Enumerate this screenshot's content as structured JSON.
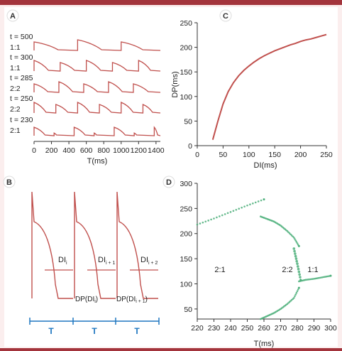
{
  "colors": {
    "frame_bar": "#a3343c",
    "frame_bg": "#fbeeee",
    "trace": "#c0504d",
    "axis": "#333333",
    "period_bar": "#1f77c0",
    "bif": "#4caf7a"
  },
  "panels": {
    "A": {
      "letter": "A",
      "rows": [
        {
          "t": "t = 500",
          "ratio": "1:1"
        },
        {
          "t": "t = 300",
          "ratio": "1:1"
        },
        {
          "t": "t = 285",
          "ratio": "2:2"
        },
        {
          "t": "t = 250",
          "ratio": "2:2"
        },
        {
          "t": "t = 230",
          "ratio": "2:1"
        }
      ],
      "xlabel": "T(ms)"
    },
    "B": {
      "letter": "B",
      "di_labels": [
        "DI",
        "DI",
        "DI"
      ],
      "di_subs": [
        "i",
        "i + 1",
        "i + 2"
      ],
      "dp_labels": [
        "DP(DI",
        "DP(DI"
      ],
      "dp_subs": [
        "i",
        "i + 1"
      ],
      "dp_closers": [
        ")",
        ")"
      ],
      "period_label": "T"
    },
    "C": {
      "letter": "C",
      "xlabel": "DI(ms)",
      "ylabel": "DP(ms)"
    },
    "D": {
      "letter": "D",
      "xlabel": "T(ms)",
      "region_labels": [
        "2:1",
        "2:2",
        "1:1"
      ]
    }
  },
  "chart_data": [
    {
      "panel": "A",
      "type": "line",
      "title": "",
      "xlabel": "T(ms)",
      "ylabel": "",
      "xlim": [
        0,
        1450
      ],
      "x_ticks": [
        0,
        200,
        400,
        600,
        800,
        1000,
        1200,
        1400
      ],
      "series_rows": [
        {
          "label": "t = 500",
          "ratio": "1:1",
          "stim_times": [
            0,
            500,
            1000
          ]
        },
        {
          "label": "t = 300",
          "ratio": "1:1",
          "stim_times": [
            0,
            300,
            600,
            900,
            1200
          ]
        },
        {
          "label": "t = 285",
          "ratio": "2:2",
          "stim_times": [
            0,
            285,
            570,
            855,
            1140
          ]
        },
        {
          "label": "t = 250",
          "ratio": "2:2",
          "stim_times": [
            0,
            250,
            500,
            750,
            1000,
            1250
          ]
        },
        {
          "label": "t = 230",
          "ratio": "2:1",
          "stim_times": [
            0,
            230,
            460,
            690,
            920,
            1150,
            1380
          ]
        }
      ]
    },
    {
      "panel": "B",
      "type": "line",
      "title": "",
      "xlabel": "",
      "ylabel": "",
      "description_values": {
        "beats": 3,
        "period_label": "T"
      }
    },
    {
      "panel": "C",
      "type": "line",
      "title": "",
      "xlabel": "DI(ms)",
      "ylabel": "DP(ms)",
      "xlim": [
        0,
        250
      ],
      "ylim": [
        0,
        250
      ],
      "x_ticks": [
        0,
        50,
        100,
        150,
        200,
        250
      ],
      "y_ticks": [
        0,
        50,
        100,
        150,
        200,
        250
      ],
      "x": [
        30,
        40,
        50,
        60,
        70,
        80,
        90,
        100,
        110,
        120,
        130,
        140,
        150,
        160,
        170,
        180,
        190,
        200,
        210,
        220,
        230,
        240,
        250
      ],
      "y": [
        12,
        50,
        85,
        110,
        128,
        142,
        153,
        162,
        170,
        177,
        183,
        188,
        193,
        197,
        201,
        205,
        208,
        212,
        215,
        217,
        220,
        223,
        226
      ]
    },
    {
      "panel": "D",
      "type": "scatter",
      "title": "",
      "xlabel": "T(ms)",
      "ylabel": "",
      "xlim": [
        220,
        300
      ],
      "ylim": [
        30,
        300
      ],
      "x_ticks": [
        220,
        230,
        240,
        250,
        260,
        270,
        280,
        290,
        300
      ],
      "y_ticks": [
        50,
        100,
        150,
        200,
        250,
        300
      ],
      "regions": [
        "2:1",
        "2:2",
        "1:1"
      ],
      "series": [
        {
          "x": [
            220,
            230,
            240,
            250,
            260
          ],
          "y": [
            218,
            230,
            243,
            256,
            268
          ]
        },
        {
          "x": [
            258,
            262,
            266,
            270,
            274,
            278,
            281
          ],
          "y": [
            234,
            229,
            224,
            216,
            205,
            192,
            175
          ]
        },
        {
          "x": [
            278,
            280,
            282
          ],
          "y": [
            170,
            140,
            108
          ]
        },
        {
          "x": [
            258,
            262,
            266,
            270,
            274,
            278,
            281
          ],
          "y": [
            30,
            36,
            42,
            50,
            60,
            72,
            92
          ]
        },
        {
          "x": [
            281,
            285,
            290,
            295,
            300
          ],
          "y": [
            105,
            108,
            110,
            113,
            116
          ]
        }
      ]
    }
  ]
}
